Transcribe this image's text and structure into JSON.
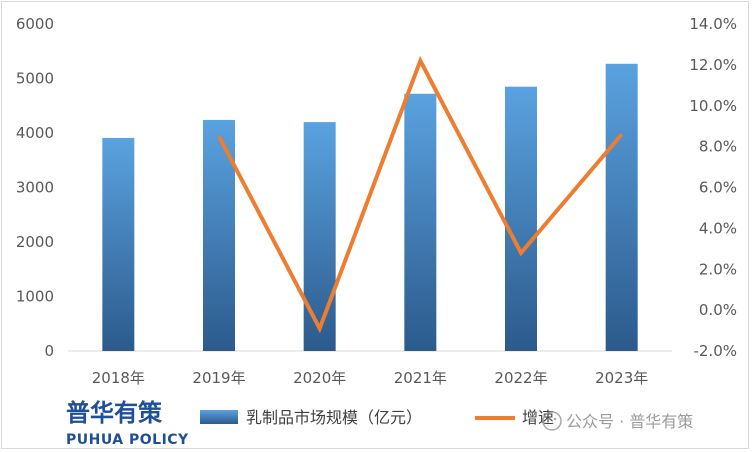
{
  "chart_data": {
    "type": "bar+line",
    "categories": [
      "2018年",
      "2019年",
      "2020年",
      "2021年",
      "2022年",
      "2023年"
    ],
    "series": [
      {
        "name": "乳制品市场规模（亿元）",
        "type": "bar",
        "axis": "left",
        "values": [
          3910,
          4240,
          4200,
          4720,
          4850,
          5270
        ]
      },
      {
        "name": "增速",
        "type": "line",
        "axis": "right",
        "values": [
          null,
          8.5,
          -0.9,
          12.2,
          2.8,
          8.6
        ]
      }
    ],
    "y_left": {
      "ylim": [
        0,
        6000
      ],
      "ticks": [
        "0",
        "1000",
        "2000",
        "3000",
        "4000",
        "5000",
        "6000"
      ]
    },
    "y_right": {
      "ylim": [
        -2,
        14
      ],
      "ticks": [
        "-2.0%",
        "0.0%",
        "2.0%",
        "4.0%",
        "6.0%",
        "8.0%",
        "10.0%",
        "12.0%",
        "14.0%"
      ]
    },
    "grid": false,
    "legend": "bottom"
  },
  "colors": {
    "bar_top": "#5aa2e0",
    "bar_bottom": "#2c5a8c",
    "line": "#ed7d31",
    "axis": "#d9d9d9"
  },
  "logo": {
    "cn": "普华有策",
    "en": "PUHUA POLICY"
  },
  "watermark": {
    "text": "公众号 · 普华有策"
  }
}
